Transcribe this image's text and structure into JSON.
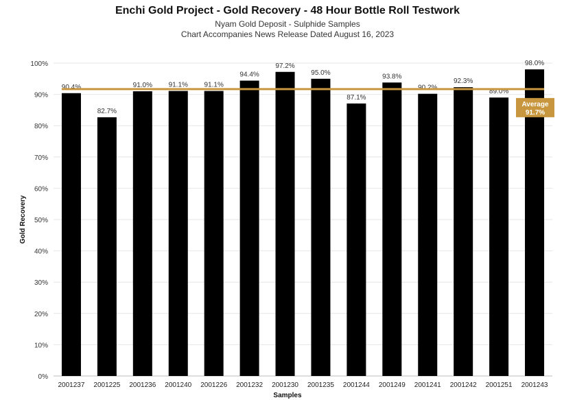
{
  "chart_data": {
    "type": "bar",
    "title": "Enchi Gold Project - Gold Recovery - 48 Hour Bottle Roll Testwork",
    "subtitle_lines": [
      "Nyam Gold Deposit - Sulphide Samples",
      "Chart Accompanies News Release Dated August 16, 2023"
    ],
    "xlabel": "Samples",
    "ylabel": "Gold Recovery",
    "ylim": [
      0,
      100
    ],
    "yticks": [
      0,
      10,
      20,
      30,
      40,
      50,
      60,
      70,
      80,
      90,
      100
    ],
    "ytick_labels": [
      "0%",
      "10%",
      "20%",
      "30%",
      "40%",
      "50%",
      "60%",
      "70%",
      "80%",
      "90%",
      "100%"
    ],
    "categories": [
      "2001237",
      "2001225",
      "2001236",
      "2001240",
      "2001226",
      "2001232",
      "2001230",
      "2001235",
      "2001244",
      "2001249",
      "2001241",
      "2001242",
      "2001251",
      "2001243"
    ],
    "values": [
      90.4,
      82.7,
      91.0,
      91.1,
      91.1,
      94.4,
      97.2,
      95.0,
      87.1,
      93.8,
      90.2,
      92.3,
      89.0,
      98.0
    ],
    "value_labels": [
      "90.4%",
      "82.7%",
      "91.0%",
      "91.1%",
      "91.1%",
      "94.4%",
      "97.2%",
      "95.0%",
      "87.1%",
      "93.8%",
      "90.2%",
      "92.3%",
      "89.0%",
      "98.0%"
    ],
    "average": {
      "value": 91.7,
      "label_line1": "Average",
      "label_line2": "91.7%"
    },
    "grid": true,
    "colors": {
      "bar": "#000000",
      "average_line": "#c8963e",
      "average_box": "#c8963e",
      "grid": "#e6e6e6"
    }
  }
}
